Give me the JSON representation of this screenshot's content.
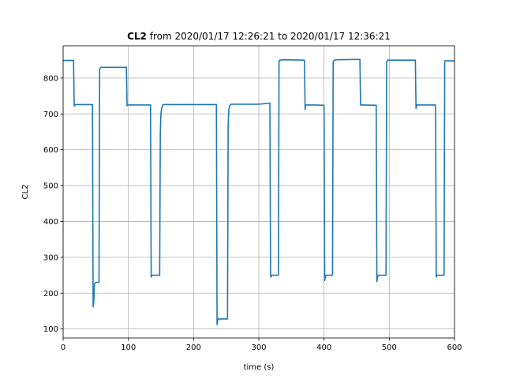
{
  "chart_data": {
    "type": "line",
    "title_bold": "CL2",
    "title_rest": " from 2020/01/17 12:26:21 to 2020/01/17 12:36:21",
    "xlabel": "time (s)",
    "ylabel": "CL2",
    "xlim": [
      0,
      600
    ],
    "ylim": [
      75,
      890
    ],
    "x_ticks": [
      0,
      100,
      200,
      300,
      400,
      500,
      600
    ],
    "y_ticks": [
      100,
      200,
      300,
      400,
      500,
      600,
      700,
      800
    ],
    "grid": true,
    "series": [
      {
        "color": "#1f77b4",
        "x": [
          0,
          16,
          17,
          19,
          45,
          46,
          47,
          48,
          49,
          50,
          55,
          56,
          57,
          58,
          97,
          98,
          100,
          134,
          135,
          136,
          148,
          149,
          150,
          151,
          152,
          153,
          235,
          236,
          237,
          238,
          240,
          252,
          253,
          254,
          255,
          256,
          258,
          300,
          317,
          318,
          319,
          320,
          321,
          330,
          331,
          332,
          333,
          335,
          370,
          371,
          372,
          373,
          385,
          400,
          401,
          402,
          403,
          404,
          405,
          413,
          414,
          415,
          416,
          418,
          455,
          456,
          457,
          458,
          480,
          481,
          482,
          483,
          484,
          485,
          495,
          496,
          497,
          498,
          500,
          540,
          541,
          542,
          543,
          548,
          571,
          572,
          573,
          574,
          575,
          584,
          585,
          586,
          588,
          600
        ],
        "y": [
          849,
          849,
          722,
          726,
          726,
          162,
          175,
          225,
          228,
          230,
          230,
          825,
          828,
          830,
          830,
          723,
          725,
          725,
          245,
          250,
          250,
          650,
          700,
          715,
          720,
          726,
          726,
          112,
          125,
          128,
          128,
          128,
          670,
          710,
          720,
          725,
          727,
          727,
          730,
          250,
          245,
          250,
          250,
          250,
          845,
          850,
          850,
          851,
          850,
          712,
          725,
          725,
          725,
          724,
          235,
          245,
          250,
          250,
          250,
          250,
          845,
          848,
          850,
          851,
          852,
          725,
          725,
          725,
          724,
          232,
          245,
          250,
          250,
          250,
          250,
          845,
          848,
          850,
          850,
          850,
          715,
          725,
          725,
          725,
          725,
          245,
          250,
          250,
          250,
          250,
          848,
          848,
          848,
          848
        ]
      }
    ]
  }
}
